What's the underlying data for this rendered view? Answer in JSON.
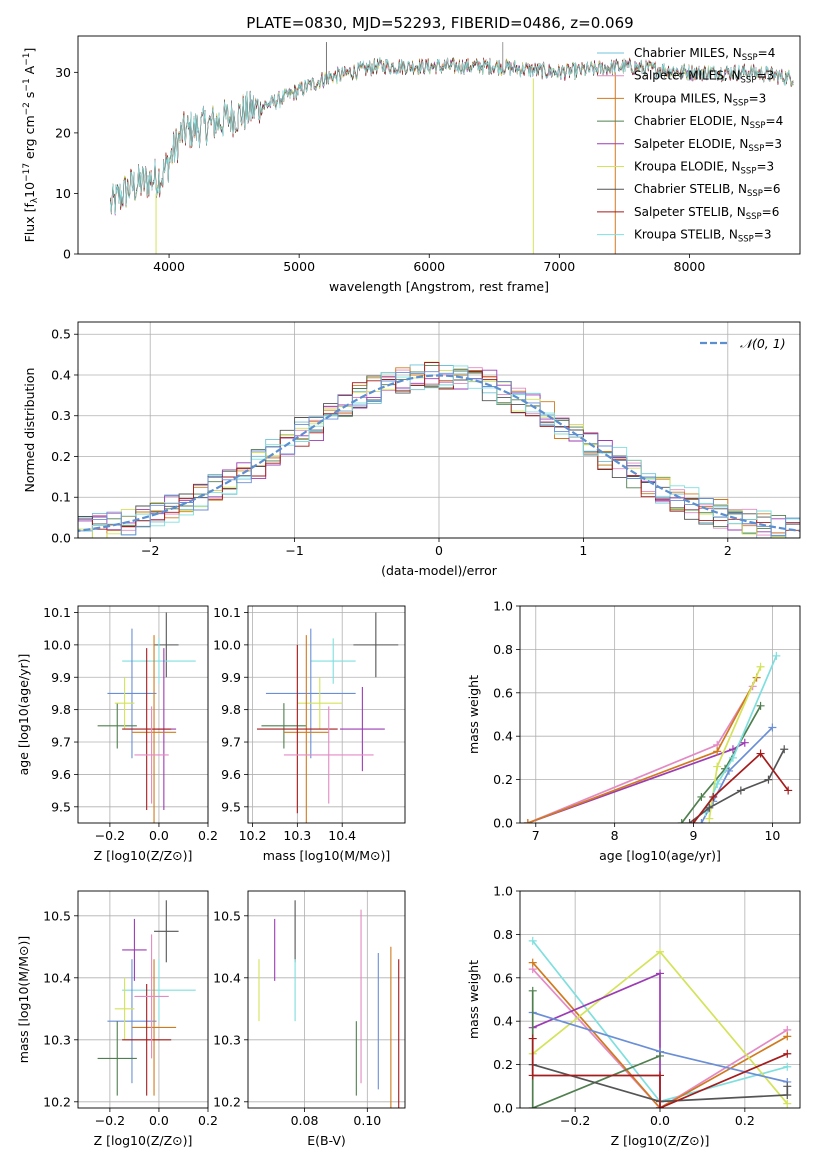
{
  "title": "PLATE=0830, MJD=52293, FIBERID=0486, z=0.069",
  "colors": {
    "Chabrier MILES": "#6fc3d8",
    "Salpeter MILES": "#e38ac4",
    "Kroupa MILES": "#d07a1e",
    "Chabrier ELODIE": "#4f7f4f",
    "Salpeter ELODIE": "#9c3cb4",
    "Kroupa ELODIE": "#d4e35a",
    "Chabrier STELIB": "#555555",
    "Salpeter STELIB": "#a51c1c",
    "Kroupa STELIB": "#7fdfdf",
    "sixth_series": "#6b8fd6",
    "normal_curve": "#5b8fd0",
    "grid": "#b0b0b0"
  },
  "chart_data": [
    {
      "type": "line",
      "panel": "spectrum",
      "xlabel": "wavelength [Angstrom, rest frame]",
      "ylabel": "Flux [f_λ 10^-17 erg cm^-2 s^-1 A^-1]",
      "xlim": [
        3300,
        8850
      ],
      "ylim": [
        0,
        36
      ],
      "xticks": [
        4000,
        5000,
        6000,
        7000,
        8000
      ],
      "yticks": [
        0,
        10,
        20,
        30
      ],
      "grid": false,
      "legend_position": "top-right",
      "series": [
        {
          "name": "Chabrier MILES, N_SSP=4"
        },
        {
          "name": "Salpeter MILES, N_SSP=3"
        },
        {
          "name": "Kroupa MILES, N_SSP=3"
        },
        {
          "name": "Chabrier ELODIE, N_SSP=4"
        },
        {
          "name": "Salpeter ELODIE, N_SSP=3"
        },
        {
          "name": "Kroupa ELODIE, N_SSP=3"
        },
        {
          "name": "Chabrier STELIB, N_SSP=6"
        },
        {
          "name": "Salpeter STELIB, N_SSP=6"
        },
        {
          "name": "Kroupa STELIB, N_SSP=3"
        }
      ],
      "continuum": {
        "x": [
          3550,
          3700,
          3950,
          4100,
          4400,
          4800,
          5200,
          5600,
          6000,
          6500,
          7000,
          7500,
          8000,
          8500,
          8800
        ],
        "y": [
          8,
          11,
          13,
          20,
          22,
          25,
          29,
          31,
          31,
          31,
          30,
          31,
          30,
          30,
          29
        ]
      },
      "spikes": [
        {
          "x": 3900,
          "y0": 0,
          "y1": 10
        },
        {
          "x": 5210,
          "y0": 28,
          "y1": 35
        },
        {
          "x": 6565,
          "y0": 30,
          "y1": 35
        },
        {
          "x": 6800,
          "y0": 0,
          "y1": 29
        },
        {
          "x": 7430,
          "y0": 0,
          "y1": 30
        }
      ]
    },
    {
      "type": "bar",
      "panel": "residuals",
      "xlabel": "(data-model)/error",
      "ylabel": "Normed distribution",
      "xlim": [
        -2.5,
        2.5
      ],
      "ylim": [
        0,
        0.53
      ],
      "xticks": [
        -2,
        -1,
        0,
        1,
        2
      ],
      "yticks": [
        0.0,
        0.1,
        0.2,
        0.3,
        0.4,
        0.5
      ],
      "grid": true,
      "legend_position": "top-right",
      "legend": "N(0,1)",
      "bin_width": 0.1
    },
    {
      "type": "scatter",
      "panel": "age-vs-Z",
      "xlabel": "Z [log10(Z/Z⊙)]",
      "ylabel": "age [log10(age/yr)]",
      "xlim": [
        -0.33,
        0.2
      ],
      "ylim": [
        9.45,
        10.12
      ],
      "xticks": [
        -0.2,
        0.0,
        0.2
      ],
      "yticks": [
        9.5,
        9.6,
        9.7,
        9.8,
        9.9,
        10.0,
        10.1
      ],
      "grid": true,
      "points": [
        {
          "x": 0.03,
          "y": 10.0,
          "xerr": 0.05,
          "yerr": 0.1,
          "color": "#555555"
        },
        {
          "x": 0.0,
          "y": 9.95,
          "xerr": 0.15,
          "yerr": 0.07,
          "color": "#7fdfdf"
        },
        {
          "x": -0.11,
          "y": 9.85,
          "xerr": 0.1,
          "yerr": 0.2,
          "color": "#6b8fd6"
        },
        {
          "x": -0.17,
          "y": 9.75,
          "xerr": 0.08,
          "yerr": 0.07,
          "color": "#4f7f4f"
        },
        {
          "x": -0.14,
          "y": 9.82,
          "xerr": 0.04,
          "yerr": 0.08,
          "color": "#d4e35a"
        },
        {
          "x": 0.02,
          "y": 9.74,
          "xerr": 0.05,
          "yerr": 0.25,
          "color": "#9c3cb4"
        },
        {
          "x": -0.02,
          "y": 9.73,
          "xerr": 0.09,
          "yerr": 0.3,
          "color": "#d07a1e"
        },
        {
          "x": -0.05,
          "y": 9.74,
          "xerr": 0.1,
          "yerr": 0.25,
          "color": "#a51c1c"
        },
        {
          "x": -0.03,
          "y": 9.66,
          "xerr": 0.07,
          "yerr": 0.15,
          "color": "#e38ac4"
        }
      ]
    },
    {
      "type": "scatter",
      "panel": "age-vs-mass",
      "xlabel": "mass [log10(M/M⊙)]",
      "xlim": [
        10.19,
        10.54
      ],
      "ylim": [
        9.45,
        10.12
      ],
      "xticks": [
        10.2,
        10.3,
        10.4
      ],
      "yticks": [
        9.5,
        9.6,
        9.7,
        9.8,
        9.9,
        10.0,
        10.1
      ],
      "grid": true,
      "points": [
        {
          "x": 10.475,
          "y": 10.0,
          "xerr": 0.05,
          "yerr": 0.1,
          "color": "#555555"
        },
        {
          "x": 10.38,
          "y": 9.95,
          "xerr": 0.05,
          "yerr": 0.07,
          "color": "#7fdfdf"
        },
        {
          "x": 10.33,
          "y": 9.85,
          "xerr": 0.1,
          "yerr": 0.2,
          "color": "#6b8fd6"
        },
        {
          "x": 10.27,
          "y": 9.75,
          "xerr": 0.05,
          "yerr": 0.07,
          "color": "#4f7f4f"
        },
        {
          "x": 10.35,
          "y": 9.82,
          "xerr": 0.05,
          "yerr": 0.08,
          "color": "#d4e35a"
        },
        {
          "x": 10.445,
          "y": 9.74,
          "xerr": 0.05,
          "yerr": 0.13,
          "color": "#9c3cb4"
        },
        {
          "x": 10.32,
          "y": 9.73,
          "xerr": 0.05,
          "yerr": 0.3,
          "color": "#d07a1e"
        },
        {
          "x": 10.3,
          "y": 9.74,
          "xerr": 0.09,
          "yerr": 0.26,
          "color": "#a51c1c"
        },
        {
          "x": 10.37,
          "y": 9.66,
          "xerr": 0.1,
          "yerr": 0.15,
          "color": "#e38ac4"
        }
      ]
    },
    {
      "type": "line",
      "panel": "weight-vs-age",
      "xlabel": "age [log10(age/yr)]",
      "ylabel": "mass weight",
      "xlim": [
        6.8,
        10.35
      ],
      "ylim": [
        0,
        1.0
      ],
      "xticks": [
        7,
        8,
        9,
        10
      ],
      "yticks": [
        0.0,
        0.2,
        0.4,
        0.6,
        0.8,
        1.0
      ],
      "grid": true,
      "series": [
        {
          "color": "#9c3cb4",
          "x": [
            6.9,
            9.5,
            9.65
          ],
          "y": [
            0.0,
            0.34,
            0.37
          ]
        },
        {
          "color": "#e38ac4",
          "x": [
            6.9,
            9.3,
            9.75
          ],
          "y": [
            0.0,
            0.36,
            0.63
          ]
        },
        {
          "color": "#d07a1e",
          "x": [
            6.9,
            9.3,
            9.8
          ],
          "y": [
            0.0,
            0.33,
            0.67
          ]
        },
        {
          "color": "#6b8fd6",
          "x": [
            9.1,
            9.25,
            9.45,
            10.0
          ],
          "y": [
            0.0,
            0.1,
            0.24,
            0.44
          ]
        },
        {
          "color": "#4f7f4f",
          "x": [
            8.85,
            9.1,
            9.4,
            9.85
          ],
          "y": [
            0.0,
            0.12,
            0.25,
            0.54
          ]
        },
        {
          "color": "#d4e35a",
          "x": [
            9.2,
            9.3,
            9.85
          ],
          "y": [
            0.02,
            0.26,
            0.72
          ]
        },
        {
          "color": "#7fdfdf",
          "x": [
            9.15,
            9.3,
            9.5,
            10.05
          ],
          "y": [
            0.05,
            0.18,
            0.3,
            0.77
          ]
        },
        {
          "color": "#555555",
          "x": [
            8.95,
            9.2,
            9.6,
            9.95,
            10.15
          ],
          "y": [
            0.0,
            0.07,
            0.15,
            0.2,
            0.34
          ]
        },
        {
          "color": "#a51c1c",
          "x": [
            9.0,
            9.25,
            9.85,
            10.2
          ],
          "y": [
            0.0,
            0.12,
            0.32,
            0.15
          ]
        }
      ]
    },
    {
      "type": "scatter",
      "panel": "mass-vs-Z",
      "xlabel": "Z [log10(Z/Z⊙)]",
      "ylabel": "mass [log10(M/M⊙)]",
      "xlim": [
        -0.33,
        0.2
      ],
      "ylim": [
        10.19,
        10.54
      ],
      "xticks": [
        -0.2,
        0.0,
        0.2
      ],
      "yticks": [
        10.2,
        10.3,
        10.4,
        10.5
      ],
      "grid": true,
      "points": [
        {
          "x": 0.03,
          "y": 10.475,
          "xerr": 0.05,
          "yerr": 0.05,
          "color": "#555555"
        },
        {
          "x": 0.0,
          "y": 10.38,
          "xerr": 0.15,
          "yerr": 0.05,
          "color": "#7fdfdf"
        },
        {
          "x": -0.11,
          "y": 10.33,
          "xerr": 0.1,
          "yerr": 0.1,
          "color": "#6b8fd6"
        },
        {
          "x": -0.17,
          "y": 10.27,
          "xerr": 0.08,
          "yerr": 0.06,
          "color": "#4f7f4f"
        },
        {
          "x": -0.14,
          "y": 10.35,
          "xerr": 0.04,
          "yerr": 0.05,
          "color": "#d4e35a"
        },
        {
          "x": -0.1,
          "y": 10.445,
          "xerr": 0.05,
          "yerr": 0.05,
          "color": "#9c3cb4"
        },
        {
          "x": -0.02,
          "y": 10.32,
          "xerr": 0.09,
          "yerr": 0.11,
          "color": "#d07a1e"
        },
        {
          "x": -0.05,
          "y": 10.3,
          "xerr": 0.1,
          "yerr": 0.09,
          "color": "#a51c1c"
        },
        {
          "x": -0.03,
          "y": 10.37,
          "xerr": 0.07,
          "yerr": 0.1,
          "color": "#e38ac4"
        }
      ]
    },
    {
      "type": "scatter",
      "panel": "mass-vs-ebv",
      "xlabel": "E(B-V)",
      "xlim": [
        0.062,
        0.112
      ],
      "ylim": [
        10.19,
        10.54
      ],
      "xticks": [
        0.08,
        0.1
      ],
      "yticks": [
        10.2,
        10.3,
        10.4,
        10.5
      ],
      "grid": true,
      "points": [
        {
          "x": 0.0655,
          "y": 10.38,
          "yerr": 0.05,
          "color": "#d4e35a"
        },
        {
          "x": 0.0705,
          "y": 10.445,
          "yerr": 0.05,
          "color": "#9c3cb4"
        },
        {
          "x": 0.077,
          "y": 10.475,
          "yerr": 0.05,
          "color": "#555555"
        },
        {
          "x": 0.077,
          "y": 10.38,
          "yerr": 0.05,
          "color": "#7fdfdf"
        },
        {
          "x": 0.0965,
          "y": 10.27,
          "yerr": 0.06,
          "color": "#4f7f4f"
        },
        {
          "x": 0.098,
          "y": 10.37,
          "yerr": 0.14,
          "color": "#e38ac4"
        },
        {
          "x": 0.1035,
          "y": 10.33,
          "yerr": 0.11,
          "color": "#6b8fd6"
        },
        {
          "x": 0.1075,
          "y": 10.32,
          "yerr": 0.13,
          "color": "#d07a1e"
        },
        {
          "x": 0.11,
          "y": 10.3,
          "yerr": 0.13,
          "color": "#a51c1c"
        }
      ]
    },
    {
      "type": "line",
      "panel": "weight-vs-Z",
      "xlabel": "Z [log10(Z/Z⊙)]",
      "ylabel": "mass weight",
      "xlim": [
        -0.33,
        0.33
      ],
      "ylim": [
        0,
        1.0
      ],
      "xticks": [
        -0.2,
        0.0,
        0.2
      ],
      "yticks": [
        0.0,
        0.2,
        0.4,
        0.6,
        0.8,
        1.0
      ],
      "grid": true,
      "series": [
        {
          "color": "#7fdfdf",
          "x": [
            -0.3,
            0.0,
            0.3
          ],
          "y": [
            0.77,
            0.03,
            0.19
          ]
        },
        {
          "color": "#e38ac4",
          "x": [
            -0.3,
            0.0,
            0.3
          ],
          "y": [
            0.64,
            0.0,
            0.36
          ]
        },
        {
          "color": "#d07a1e",
          "x": [
            -0.3,
            0.0,
            0.3
          ],
          "y": [
            0.67,
            0.0,
            0.33
          ]
        },
        {
          "color": "#d4e35a",
          "x": [
            -0.3,
            0.0,
            0.3
          ],
          "y": [
            0.25,
            0.72,
            0.02
          ]
        },
        {
          "color": "#9c3cb4",
          "x": [
            -0.3,
            0.0,
            0.0
          ],
          "y": [
            0.37,
            0.62,
            0.0
          ]
        },
        {
          "color": "#6b8fd6",
          "x": [
            -0.3,
            0.0,
            0.3
          ],
          "y": [
            0.44,
            0.26,
            0.12
          ]
        },
        {
          "color": "#4f7f4f",
          "x": [
            -0.3,
            -0.3,
            0.0
          ],
          "y": [
            0.54,
            0.0,
            0.24
          ]
        },
        {
          "color": "#555555",
          "x": [
            -0.3,
            0.0,
            0.3,
            0.3
          ],
          "y": [
            0.2,
            0.03,
            0.06,
            0.1
          ]
        },
        {
          "color": "#a51c1c",
          "x": [
            -0.3,
            -0.3,
            0.0,
            0.0,
            0.3
          ],
          "y": [
            0.32,
            0.15,
            0.15,
            0.0,
            0.25
          ]
        }
      ]
    }
  ]
}
